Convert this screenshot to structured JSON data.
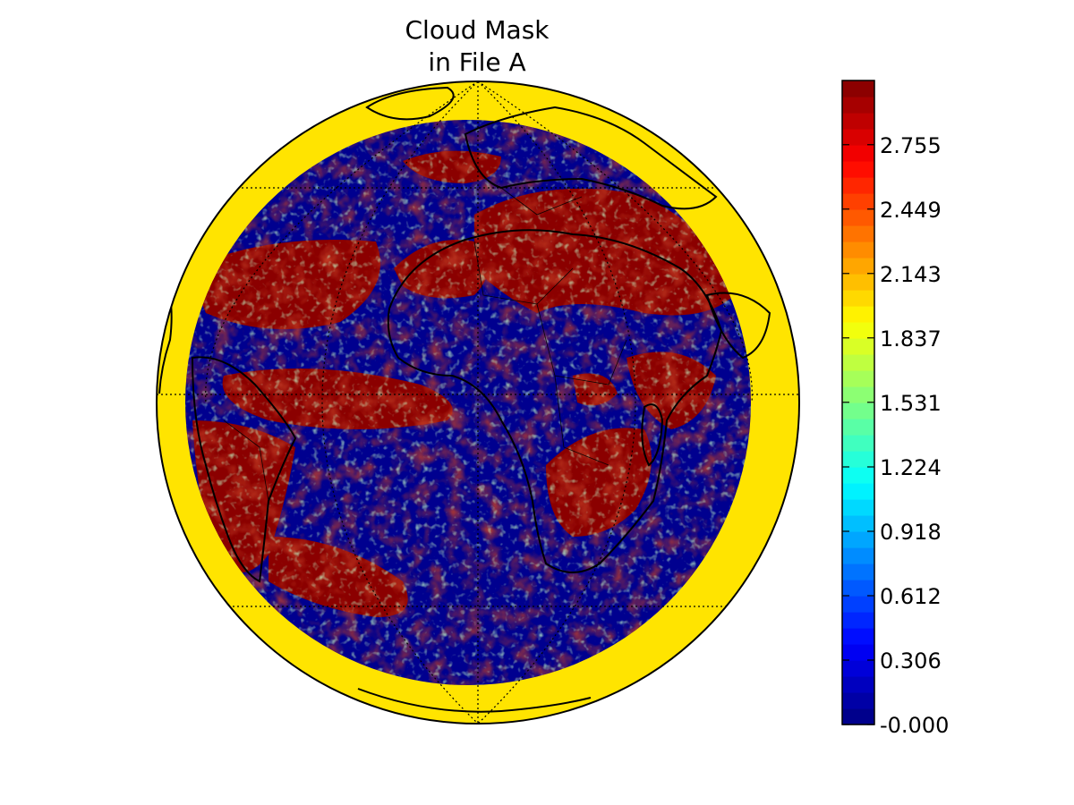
{
  "title_lines": [
    "Cloud Mask",
    "in File A"
  ],
  "map": {
    "projection": "orthographic",
    "background_value_color": "#ffe400",
    "coastline_color": "#000000",
    "disk_colors": {
      "clear": "#00008f",
      "cloudy": "#8b0000",
      "probably": "#e9e400",
      "mixed": "#7fffb0"
    }
  },
  "colorbar": {
    "colormap": "jet",
    "min": 0.0,
    "max": 3.06,
    "levels": 40,
    "tick_values": [
      0.0,
      0.306,
      0.612,
      0.918,
      1.224,
      1.531,
      1.837,
      2.143,
      2.449,
      2.755
    ],
    "tick_labels": [
      "-0.000",
      "0.306",
      "0.612",
      "0.918",
      "1.224",
      "1.531",
      "1.837",
      "2.143",
      "2.449",
      "2.755"
    ]
  }
}
